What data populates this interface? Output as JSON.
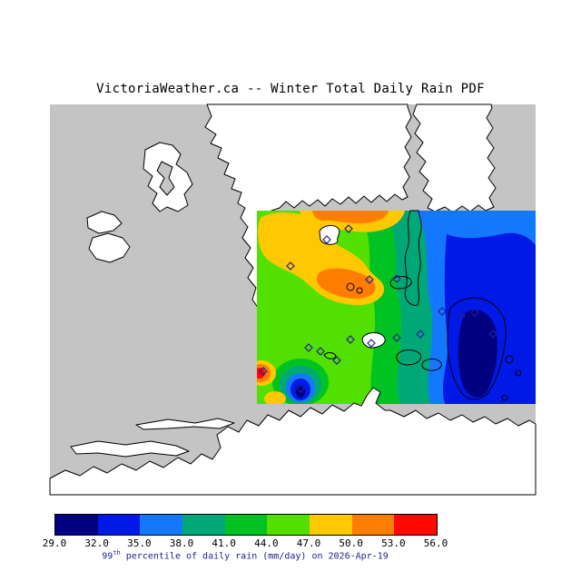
{
  "title": "VictoriaWeather.ca -- Winter Total Daily Rain PDF",
  "caption": {
    "value_prefix": "99",
    "superscript": "th",
    "text": " percentile of daily rain (mm/day) on 2026-Apr-19"
  },
  "colorbar": {
    "ticks": [
      "29.0",
      "32.0",
      "35.0",
      "38.0",
      "41.0",
      "44.0",
      "47.0",
      "50.0",
      "53.0",
      "56.0"
    ],
    "colors": [
      "#000080",
      "#0019e6",
      "#1478ff",
      "#00a878",
      "#00c323",
      "#52e000",
      "#ffc800",
      "#ff7d00",
      "#ff0800"
    ]
  },
  "map": {
    "water_color": "#c4c4c4",
    "land_color": "#ffffff",
    "coast_color": "#000000",
    "marker_color": "#20209a",
    "stations": [
      [
        320,
        293
      ],
      [
        360,
        264
      ],
      [
        384,
        252
      ],
      [
        407,
        308
      ],
      [
        437,
        307
      ],
      [
        340,
        383
      ],
      [
        353,
        387
      ],
      [
        371,
        397
      ],
      [
        386,
        374
      ],
      [
        409,
        378
      ],
      [
        437,
        372
      ],
      [
        463,
        368
      ],
      [
        487,
        343
      ],
      [
        508,
        348
      ],
      [
        523,
        344
      ],
      [
        543,
        368
      ],
      [
        290,
        409
      ],
      [
        331,
        428
      ]
    ]
  },
  "chart_data": {
    "type": "filled-contour-map",
    "title": "VictoriaWeather.ca -- Winter Total Daily Rain PDF",
    "variable": "99th percentile of daily rain",
    "units": "mm/day",
    "season": "Winter",
    "date": "2026-Apr-19",
    "colorbar_levels": [
      29,
      32,
      35,
      38,
      41,
      44,
      47,
      50,
      53,
      56
    ],
    "colorbar_colors": [
      "#000080",
      "#0019e6",
      "#1478ff",
      "#00a878",
      "#00c323",
      "#52e000",
      "#ffc800",
      "#ff7d00",
      "#ff0800"
    ],
    "legend_position": "bottom"
  }
}
